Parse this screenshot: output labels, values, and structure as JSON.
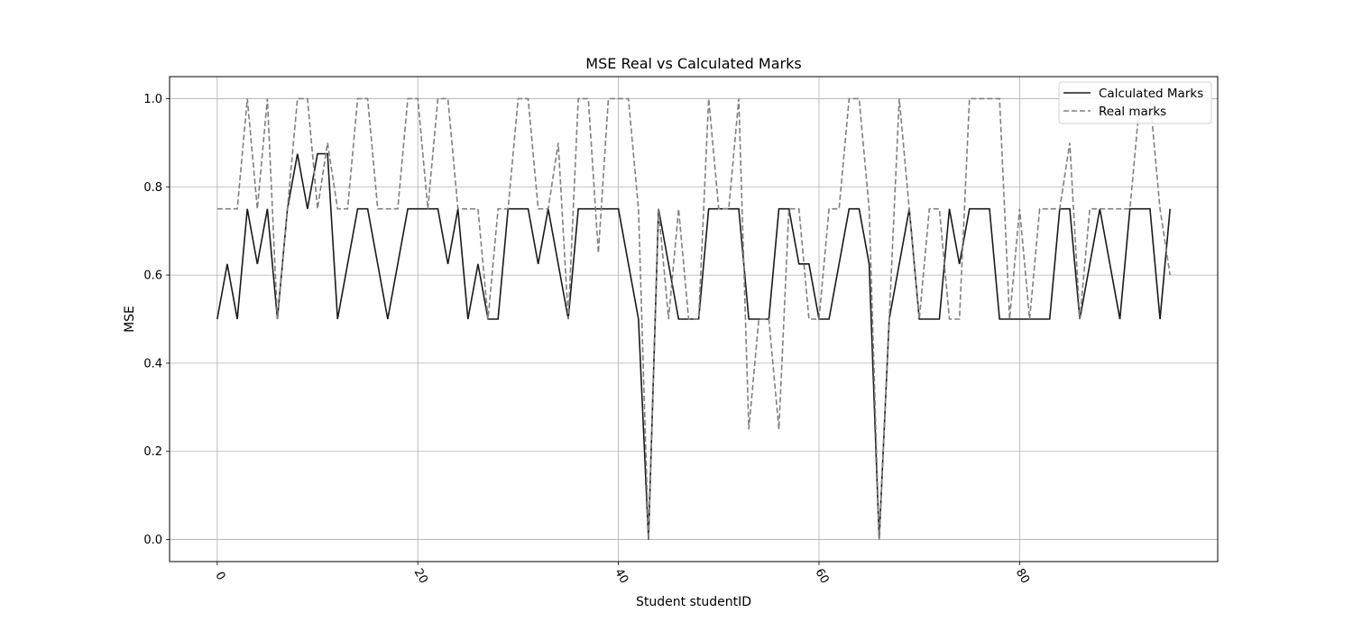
{
  "chart_data": {
    "type": "line",
    "title": "MSE Real vs Calculated Marks",
    "xlabel": "Student studentID",
    "ylabel": "MSE",
    "xlim": [
      -4.75,
      99.75
    ],
    "ylim": [
      -0.05,
      1.05
    ],
    "xticks": [
      0,
      20,
      40,
      60,
      80
    ],
    "yticks": [
      0.0,
      0.2,
      0.4,
      0.6,
      0.8,
      1.0
    ],
    "xtick_labels": [
      "0",
      "20",
      "40",
      "60",
      "80"
    ],
    "ytick_labels": [
      "0.0",
      "0.2",
      "0.4",
      "0.6",
      "0.8",
      "1.0"
    ],
    "grid": true,
    "legend_position": "top-right",
    "series": [
      {
        "name": "Calculated Marks",
        "color": "#1a1a1a",
        "style": "solid",
        "values": [
          0.5,
          0.625,
          0.5,
          0.75,
          0.625,
          0.75,
          0.5,
          0.75,
          0.875,
          0.75,
          0.875,
          0.875,
          0.5,
          0.625,
          0.75,
          0.75,
          0.625,
          0.5,
          0.625,
          0.75,
          0.75,
          0.75,
          0.75,
          0.625,
          0.75,
          0.5,
          0.625,
          0.5,
          0.5,
          0.75,
          0.75,
          0.75,
          0.625,
          0.75,
          0.625,
          0.5,
          0.75,
          0.75,
          0.75,
          0.75,
          0.75,
          0.625,
          0.5,
          0.0,
          0.75,
          0.625,
          0.5,
          0.5,
          0.5,
          0.75,
          0.75,
          0.75,
          0.75,
          0.5,
          0.5,
          0.5,
          0.75,
          0.75,
          0.625,
          0.625,
          0.5,
          0.5,
          0.625,
          0.75,
          0.75,
          0.625,
          0.0,
          0.5,
          0.625,
          0.75,
          0.5,
          0.5,
          0.5,
          0.75,
          0.625,
          0.75,
          0.75,
          0.75,
          0.5,
          0.5,
          0.5,
          0.5,
          0.5,
          0.5,
          0.75,
          0.75,
          0.5,
          0.625,
          0.75,
          0.625,
          0.5,
          0.75,
          0.75,
          0.75,
          0.5,
          0.75
        ]
      },
      {
        "name": "Real marks",
        "color": "#808080",
        "style": "dashed",
        "values": [
          0.75,
          0.75,
          0.75,
          1.0,
          0.75,
          1.0,
          0.5,
          0.75,
          1.0,
          1.0,
          0.75,
          0.9,
          0.75,
          0.75,
          1.0,
          1.0,
          0.75,
          0.75,
          0.75,
          1.0,
          1.0,
          0.75,
          1.0,
          1.0,
          0.75,
          0.75,
          0.75,
          0.5,
          0.75,
          0.75,
          1.0,
          1.0,
          0.75,
          0.75,
          0.9,
          0.5,
          1.0,
          1.0,
          0.65,
          1.0,
          1.0,
          1.0,
          0.75,
          0.0,
          0.75,
          0.5,
          0.75,
          0.5,
          0.5,
          1.0,
          0.75,
          0.75,
          1.0,
          0.25,
          0.5,
          0.5,
          0.25,
          0.75,
          0.75,
          0.5,
          0.5,
          0.75,
          0.75,
          1.0,
          1.0,
          0.75,
          0.0,
          0.5,
          1.0,
          0.75,
          0.5,
          0.75,
          0.75,
          0.5,
          0.5,
          1.0,
          1.0,
          1.0,
          1.0,
          0.5,
          0.75,
          0.5,
          0.75,
          0.75,
          0.75,
          0.9,
          0.5,
          0.75,
          0.75,
          0.75,
          0.75,
          0.75,
          1.0,
          1.0,
          0.75,
          0.6
        ]
      }
    ]
  }
}
